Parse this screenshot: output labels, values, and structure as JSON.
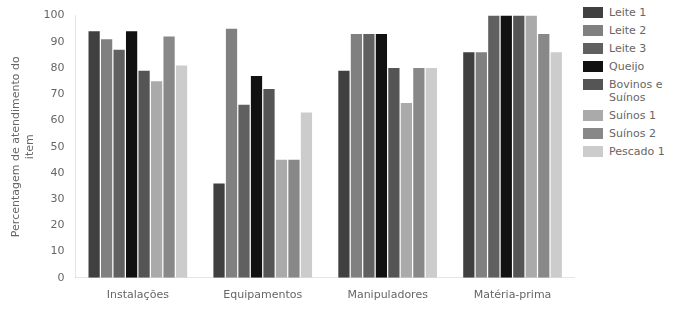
{
  "chart_data": {
    "type": "bar",
    "ylabel": "Percentagem de atendimento do\nitem",
    "categories": [
      "Instalações",
      "Equipamentos",
      "Manipuladores",
      "Matéria-prima"
    ],
    "series": [
      {
        "name": "Leite 1",
        "color": "#404040",
        "values": [
          94,
          36,
          79,
          86
        ]
      },
      {
        "name": "Leite 2",
        "color": "#808080",
        "values": [
          91,
          95,
          93,
          86
        ]
      },
      {
        "name": "Leite 3",
        "color": "#606060",
        "values": [
          87,
          66,
          93,
          100
        ]
      },
      {
        "name": "Queijo",
        "color": "#111111",
        "values": [
          94,
          77,
          93,
          100
        ]
      },
      {
        "name": "Bovinos e\nSuínos",
        "color": "#555555",
        "values": [
          79,
          72,
          80,
          100
        ]
      },
      {
        "name": "Suínos 1",
        "color": "#aaaaaa",
        "values": [
          75,
          45,
          66.7,
          100
        ]
      },
      {
        "name": "Suínos 2",
        "color": "#888888",
        "values": [
          92,
          45,
          80,
          93
        ]
      },
      {
        "name": "Pescado 1",
        "color": "#cccccc",
        "values": [
          81,
          63,
          80,
          86
        ]
      }
    ],
    "ylim": [
      0,
      100
    ],
    "yticks": [
      0,
      10,
      20,
      30,
      40,
      50,
      60,
      70,
      80,
      90,
      100
    ],
    "grid": false,
    "legend": "upper right"
  }
}
